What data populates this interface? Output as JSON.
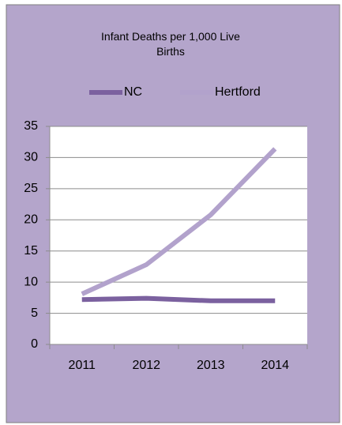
{
  "chart_data": {
    "type": "line",
    "title": "Infant Deaths per 1,000 Live Births",
    "categories": [
      "2011",
      "2012",
      "2013",
      "2014"
    ],
    "series": [
      {
        "name": "NC",
        "color": "#7b619f",
        "values": [
          7.2,
          7.4,
          7.0,
          7.0
        ]
      },
      {
        "name": "Hertford",
        "color": "#b2a2cc",
        "values": [
          8.1,
          12.8,
          20.8,
          31.4
        ]
      }
    ],
    "ylim": [
      0,
      35
    ],
    "yticks": [
      0,
      5,
      10,
      15,
      20,
      25,
      30,
      35
    ],
    "grid": true,
    "legend": "top"
  }
}
